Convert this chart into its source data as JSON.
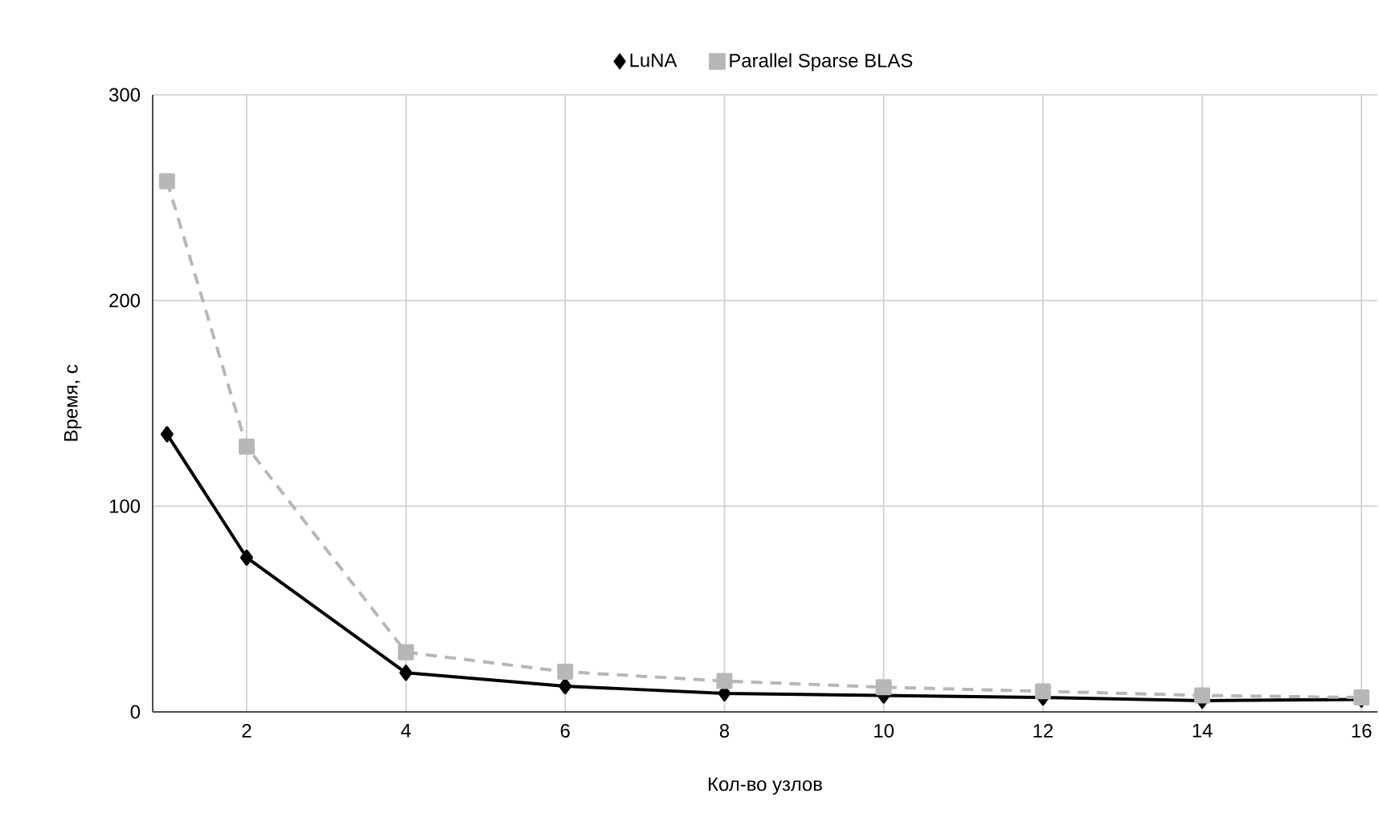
{
  "chart_data": {
    "type": "line",
    "xlabel": "Кол-во узлов",
    "ylabel": "Время, с",
    "x": [
      1,
      2,
      4,
      6,
      8,
      10,
      12,
      14,
      16
    ],
    "series": [
      {
        "name": "LuNA",
        "color": "#000000",
        "marker": "diamond",
        "line_style": "solid",
        "values": [
          135,
          75,
          19,
          12.5,
          9,
          8,
          7,
          5.5,
          6
        ]
      },
      {
        "name": "Parallel Sparse BLAS",
        "color": "#b7b7b7",
        "marker": "square",
        "line_style": "dashed",
        "values": [
          258,
          129,
          29,
          19.5,
          15,
          12,
          10,
          8,
          7
        ]
      }
    ],
    "xlim": [
      0.82,
      16.2
    ],
    "ylim": [
      0,
      300
    ],
    "xticks": [
      2,
      4,
      6,
      8,
      10,
      12,
      14,
      16
    ],
    "yticks": [
      0,
      100,
      200,
      300
    ],
    "grid": true,
    "legend": "top"
  }
}
